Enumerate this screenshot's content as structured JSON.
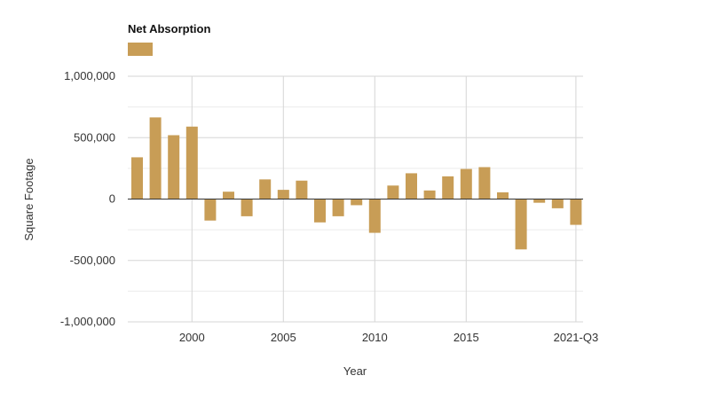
{
  "chart_data": {
    "type": "bar",
    "legend": {
      "title": "Net Absorption",
      "placement": "top-left"
    },
    "xlabel": "Year",
    "ylabel": "Square Footage",
    "ylim": [
      -1000000,
      1000000
    ],
    "yticks": [
      {
        "value": 1000000,
        "label": "1,000,000"
      },
      {
        "value": 500000,
        "label": "500,000"
      },
      {
        "value": 0,
        "label": "0"
      },
      {
        "value": -500000,
        "label": "-500,000"
      },
      {
        "value": -1000000,
        "label": "-1,000,000"
      }
    ],
    "xticks": [
      {
        "category": "2000",
        "label": "2000"
      },
      {
        "category": "2005",
        "label": "2005"
      },
      {
        "category": "2010",
        "label": "2010"
      },
      {
        "category": "2015",
        "label": "2015"
      },
      {
        "category": "2021-Q3",
        "label": "2021-Q3"
      }
    ],
    "grid": true,
    "bar_color": "#c89d56",
    "categories": [
      "1997",
      "1998",
      "1999",
      "2000",
      "2001",
      "2002",
      "2003",
      "2004",
      "2005",
      "2006",
      "2007",
      "2008",
      "2009",
      "2010",
      "2011",
      "2012",
      "2013",
      "2014",
      "2015",
      "2016",
      "2017",
      "2018",
      "2019",
      "2020",
      "2021-Q3"
    ],
    "values": [
      340000,
      665000,
      520000,
      590000,
      -175000,
      60000,
      -140000,
      160000,
      75000,
      150000,
      -190000,
      -140000,
      -50000,
      -275000,
      110000,
      210000,
      70000,
      185000,
      245000,
      260000,
      55000,
      -410000,
      -30000,
      -75000,
      -210000
    ]
  }
}
